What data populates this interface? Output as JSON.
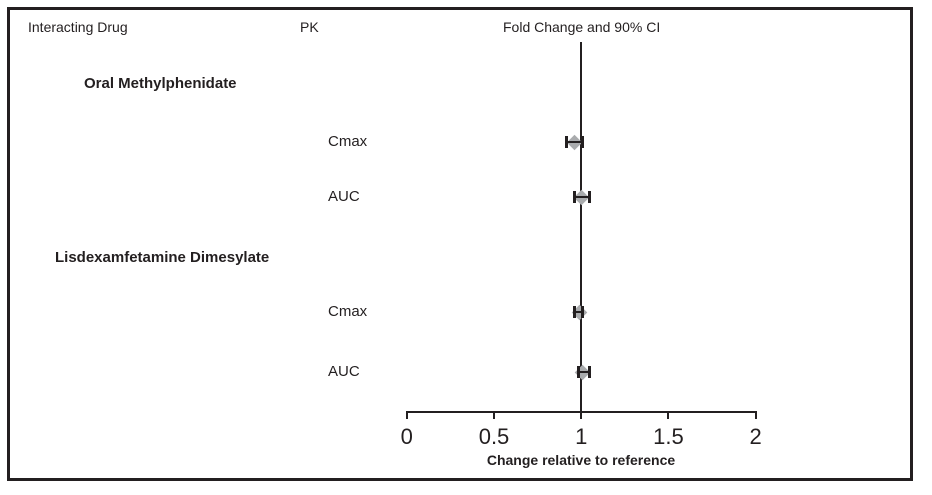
{
  "figure": {
    "columns": {
      "interacting_drug": "Interacting Drug",
      "pk": "PK",
      "fold_change": "Fold Change and 90% CI"
    }
  },
  "chart_data": {
    "type": "forest",
    "title": "Fold Change and 90% CI",
    "xlabel": "Change relative to reference",
    "xlim": [
      0,
      2
    ],
    "xticks": [
      0,
      0.5,
      1,
      1.5,
      2
    ],
    "xtick_labels": [
      "0",
      "0.5",
      "1",
      "1.5",
      "2"
    ],
    "reference_line": 1,
    "marker": "diamond",
    "marker_color": "#a9abad",
    "line_color": "#231f20",
    "grid": false,
    "legend": null,
    "groups": [
      {
        "name": "Oral Methylphenidate",
        "points": [
          {
            "pk": "Cmax",
            "value": 0.96,
            "ci_low": 0.91,
            "ci_high": 1.01
          },
          {
            "pk": "AUC",
            "value": 1.0,
            "ci_low": 0.96,
            "ci_high": 1.05
          }
        ]
      },
      {
        "name": "Lisdexamfetamine Dimesylate",
        "points": [
          {
            "pk": "Cmax",
            "value": 0.99,
            "ci_low": 0.96,
            "ci_high": 1.01
          },
          {
            "pk": "AUC",
            "value": 1.01,
            "ci_low": 0.98,
            "ci_high": 1.05
          }
        ]
      }
    ]
  }
}
